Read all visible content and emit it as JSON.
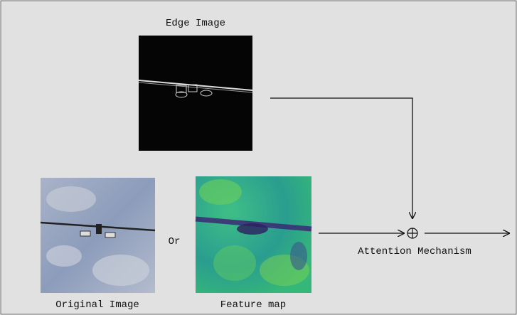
{
  "labels": {
    "edge_image": "Edge Image",
    "original_image": "Original Image",
    "or": "Or",
    "feature_map": "Feature map",
    "attention": "Attention Mechanism"
  }
}
